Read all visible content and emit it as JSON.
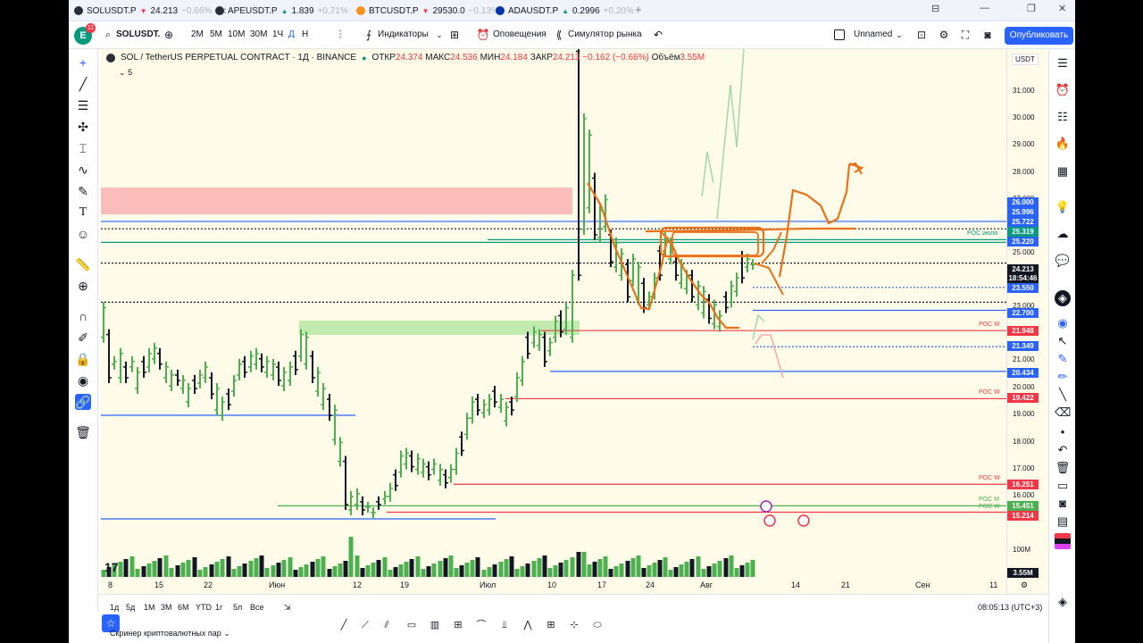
{
  "tabs": [
    {
      "symbol": "SOLUSDT.P",
      "price": "24.213",
      "change": "−0.66%"
    },
    {
      "symbol": "APEUSDT.P",
      "price": "1.839",
      "change": "+0.71%"
    },
    {
      "symbol": "BTCUSDT.P",
      "price": "29530.0",
      "change": "−0.13%"
    },
    {
      "symbol": "ADAUSDT.P",
      "price": "0.2996",
      "change": "+0.20%"
    }
  ],
  "window": {
    "minimize": "—",
    "restore": "❐",
    "close": "✕",
    "layout_icon": "⊟",
    "more": "⋯"
  },
  "toolbar": {
    "avatar": "E",
    "avatar_badge": "11",
    "symbol": "SOLUSDT.",
    "intervals": [
      "2M",
      "5M",
      "10M",
      "30M",
      "1Ч",
      "Д",
      "Н"
    ],
    "active_interval": "Д",
    "indicators": "Индикаторы",
    "alerts": "Оповещения",
    "replay": "Симулятор рынка",
    "layout_name": "Unnamed",
    "publish": "Опубликовать"
  },
  "legend": {
    "pair": "SOL / TetherUS PERPETUAL CONTRACT · 1Д · BINANCE",
    "open_label": "ОТКР",
    "open": "24.374",
    "high_label": "МАКС",
    "high": "24.536",
    "low_label": "МИН",
    "low": "24.184",
    "close_label": "ЗАКР",
    "close": "24.213",
    "change": "−0.162 (−0.66%)",
    "volume_label": "Объём",
    "volume": "3.55M",
    "indicator_count": "5"
  },
  "price_scale": {
    "currency": "USDT",
    "ticks": [
      "31.000",
      "30.000",
      "29.000",
      "28.000",
      "27.000",
      "25.000",
      "23.000",
      "21.000",
      "20.000",
      "19.000",
      "18.000",
      "17.000",
      "16.000",
      "100M"
    ],
    "badges": [
      {
        "value": "26.000",
        "color": "#2962ff"
      },
      {
        "value": "25.996",
        "color": "#2962ff"
      },
      {
        "value": "25.722",
        "color": "#2962ff"
      },
      {
        "value": "25.319",
        "color": "#089981"
      },
      {
        "value": "25.220",
        "color": "#2962ff"
      },
      {
        "value": "24.213",
        "color": "#131722"
      },
      {
        "value": "18:54:46",
        "color": "#131722"
      },
      {
        "value": "23.550",
        "color": "#2962ff"
      },
      {
        "value": "22.700",
        "color": "#2962ff"
      },
      {
        "value": "21.948",
        "color": "#f23645"
      },
      {
        "value": "21.349",
        "color": "#2962ff"
      },
      {
        "value": "20.434",
        "color": "#2962ff"
      },
      {
        "value": "19.422",
        "color": "#f23645"
      },
      {
        "value": "16.251",
        "color": "#f23645"
      },
      {
        "value": "15.451",
        "color": "#4caf50"
      },
      {
        "value": "15.214",
        "color": "#f23645"
      },
      {
        "value": "3.55M",
        "color": "#131722"
      }
    ]
  },
  "line_labels": {
    "poc_july": "POC июля",
    "poc_w": "POC W",
    "poc_m": "POC M"
  },
  "time_scale": [
    "8",
    "15",
    "22",
    "Июн",
    "12",
    "19",
    "Июл",
    "10",
    "17",
    "24",
    "Авг",
    "14",
    "21",
    "Сен",
    "11"
  ],
  "bottom": {
    "ranges": [
      "1д",
      "5д",
      "1М",
      "3М",
      "6М",
      "YTD",
      "1г",
      "5л",
      "Все"
    ],
    "clock": "08:05:13 (UTC+3)",
    "screener": "Скринер криптовалютных пар"
  },
  "colors": {
    "accent": "#2962ff",
    "up": "#4caf50",
    "down": "#131722",
    "drawing": "#e8711a"
  }
}
